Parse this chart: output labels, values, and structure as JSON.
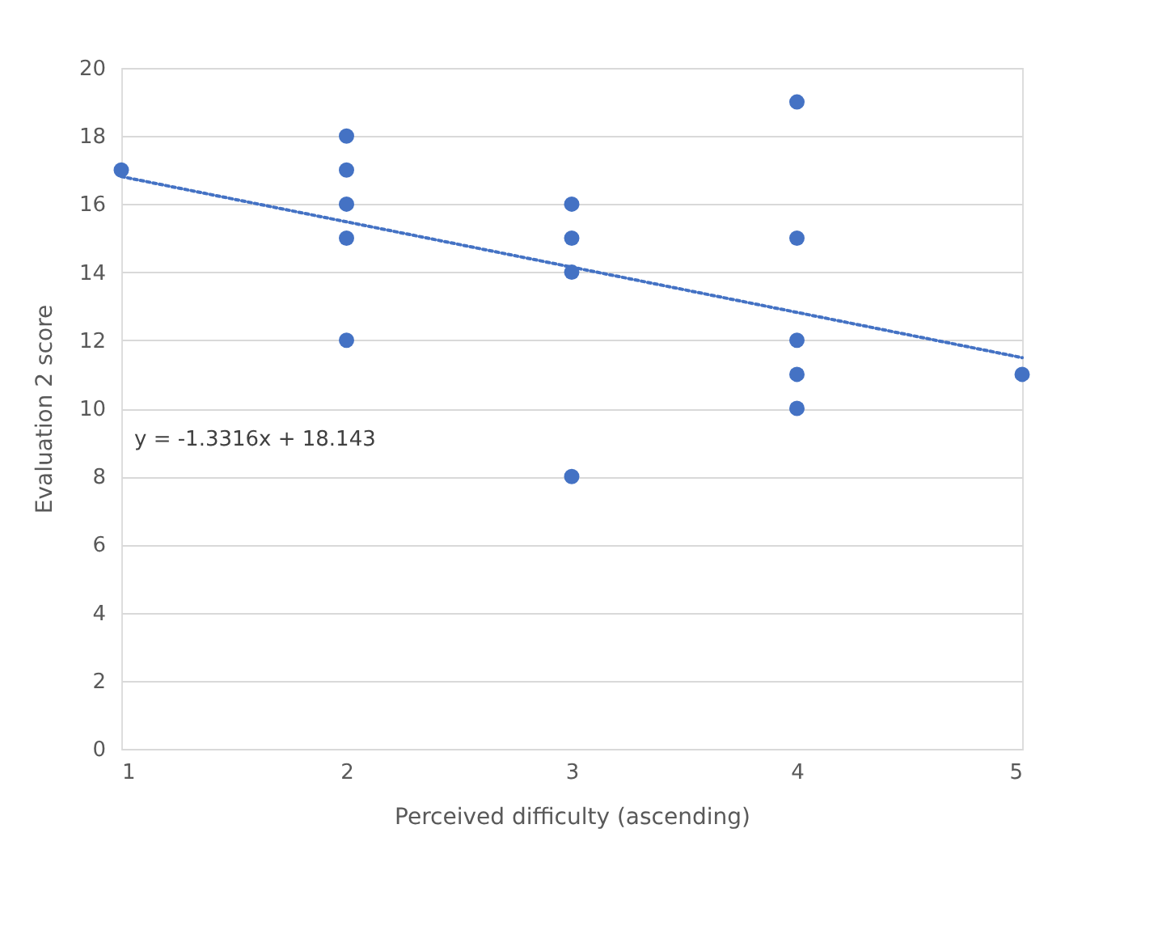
{
  "chart_data": {
    "type": "scatter",
    "xlabel": "Perceived difficulty (ascending)",
    "ylabel": "Evaluation 2 score",
    "xlim": [
      1,
      5
    ],
    "xticks": [
      1,
      2,
      3,
      4,
      5
    ],
    "ylim": [
      0,
      20
    ],
    "yticks": [
      0,
      2,
      4,
      6,
      8,
      10,
      12,
      14,
      16,
      18,
      20
    ],
    "grid": "y",
    "series": [
      {
        "color": "#4472c4",
        "marker": "circle",
        "x": [
          1,
          2,
          2,
          2,
          2,
          2,
          3,
          3,
          3,
          3,
          4,
          4,
          4,
          4,
          4,
          5
        ],
        "values": [
          17,
          18,
          17,
          16,
          15,
          12,
          16,
          15,
          14,
          8,
          19,
          15,
          12,
          11,
          10,
          11
        ]
      },
      {
        "type": "line",
        "color": "#4472c4",
        "line_style": "dotted",
        "x": [
          1,
          5
        ],
        "values": [
          16.81,
          11.49
        ]
      }
    ],
    "annotations": [
      "y = -1.3316x + 18.143"
    ]
  }
}
